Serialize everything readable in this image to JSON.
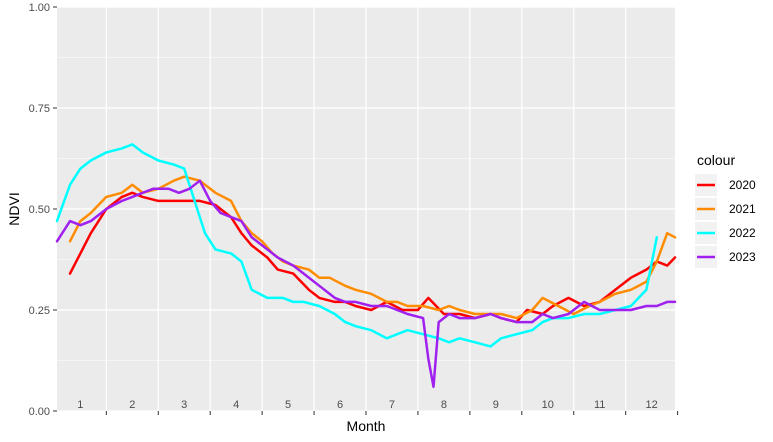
{
  "chart_data": {
    "type": "line",
    "xlabel": "Month",
    "ylabel": "NDVI",
    "xlim": [
      0.55,
      12.45
    ],
    "ylim": [
      0,
      1
    ],
    "y_ticks": [
      "0.00",
      "0.25",
      "0.50",
      "0.75",
      "1.00"
    ],
    "month_labels": [
      "1",
      "2",
      "3",
      "4",
      "5",
      "6",
      "7",
      "8",
      "9",
      "10",
      "11",
      "12"
    ],
    "grid": true,
    "legend_position": "right",
    "legend_title": "colour",
    "series": [
      {
        "name": "2020",
        "color": "#ff0000",
        "x": [
          0.8,
          1.0,
          1.2,
          1.5,
          1.8,
          2.0,
          2.2,
          2.5,
          2.7,
          3.0,
          3.3,
          3.6,
          3.9,
          4.1,
          4.3,
          4.6,
          4.8,
          5.1,
          5.4,
          5.6,
          5.9,
          6.1,
          6.3,
          6.6,
          6.9,
          7.2,
          7.5,
          7.7,
          8.0,
          8.3,
          8.6,
          8.9,
          9.1,
          9.4,
          9.6,
          9.9,
          10.1,
          10.4,
          10.7,
          11.0,
          11.3,
          11.6,
          11.9,
          12.1,
          12.3,
          12.45
        ],
        "y": [
          0.34,
          0.39,
          0.44,
          0.5,
          0.53,
          0.54,
          0.53,
          0.52,
          0.52,
          0.52,
          0.52,
          0.51,
          0.48,
          0.44,
          0.41,
          0.38,
          0.35,
          0.34,
          0.3,
          0.28,
          0.27,
          0.27,
          0.26,
          0.25,
          0.27,
          0.25,
          0.25,
          0.28,
          0.24,
          0.24,
          0.23,
          0.24,
          0.23,
          0.22,
          0.25,
          0.24,
          0.26,
          0.28,
          0.26,
          0.27,
          0.3,
          0.33,
          0.35,
          0.37,
          0.36,
          0.38
        ]
      },
      {
        "name": "2021",
        "color": "#ff8c00",
        "x": [
          0.8,
          1.0,
          1.2,
          1.5,
          1.8,
          2.0,
          2.2,
          2.5,
          2.8,
          3.0,
          3.3,
          3.6,
          3.9,
          4.1,
          4.3,
          4.5,
          4.7,
          4.9,
          5.1,
          5.4,
          5.6,
          5.8,
          6.1,
          6.3,
          6.6,
          6.9,
          7.1,
          7.3,
          7.6,
          7.9,
          8.1,
          8.3,
          8.6,
          8.9,
          9.1,
          9.4,
          9.7,
          9.9,
          10.2,
          10.5,
          10.8,
          11.0,
          11.3,
          11.6,
          11.9,
          12.1,
          12.3,
          12.45
        ],
        "y": [
          0.42,
          0.47,
          0.49,
          0.53,
          0.54,
          0.56,
          0.54,
          0.55,
          0.57,
          0.58,
          0.57,
          0.54,
          0.52,
          0.47,
          0.44,
          0.42,
          0.39,
          0.37,
          0.36,
          0.35,
          0.33,
          0.33,
          0.31,
          0.3,
          0.29,
          0.27,
          0.27,
          0.26,
          0.26,
          0.25,
          0.26,
          0.25,
          0.24,
          0.24,
          0.24,
          0.23,
          0.25,
          0.28,
          0.26,
          0.24,
          0.26,
          0.27,
          0.29,
          0.3,
          0.32,
          0.37,
          0.44,
          0.43
        ]
      },
      {
        "name": "2022",
        "color": "#00ffff",
        "x": [
          0.55,
          0.8,
          1.0,
          1.2,
          1.5,
          1.8,
          2.0,
          2.2,
          2.5,
          2.8,
          3.0,
          3.2,
          3.4,
          3.6,
          3.9,
          4.1,
          4.3,
          4.6,
          4.9,
          5.1,
          5.3,
          5.6,
          5.9,
          6.1,
          6.3,
          6.6,
          6.9,
          7.1,
          7.3,
          7.6,
          7.9,
          8.1,
          8.3,
          8.6,
          8.9,
          9.1,
          9.4,
          9.7,
          9.9,
          10.1,
          10.4,
          10.7,
          11.0,
          11.3,
          11.6,
          11.9,
          12.1
        ],
        "y": [
          0.47,
          0.56,
          0.6,
          0.62,
          0.64,
          0.65,
          0.66,
          0.64,
          0.62,
          0.61,
          0.6,
          0.52,
          0.44,
          0.4,
          0.39,
          0.37,
          0.3,
          0.28,
          0.28,
          0.27,
          0.27,
          0.26,
          0.24,
          0.22,
          0.21,
          0.2,
          0.18,
          0.19,
          0.2,
          0.19,
          0.18,
          0.17,
          0.18,
          0.17,
          0.16,
          0.18,
          0.19,
          0.2,
          0.22,
          0.23,
          0.23,
          0.24,
          0.24,
          0.25,
          0.26,
          0.3,
          0.43
        ]
      },
      {
        "name": "2023",
        "color": "#a020f0",
        "x": [
          0.55,
          0.8,
          1.0,
          1.2,
          1.5,
          1.8,
          2.0,
          2.2,
          2.4,
          2.7,
          2.9,
          3.1,
          3.3,
          3.5,
          3.7,
          3.9,
          4.1,
          4.3,
          4.6,
          4.8,
          5.1,
          5.3,
          5.6,
          5.9,
          6.1,
          6.3,
          6.6,
          6.9,
          7.1,
          7.3,
          7.6,
          7.7,
          7.8,
          7.9,
          8.1,
          8.3,
          8.6,
          8.9,
          9.1,
          9.4,
          9.7,
          9.9,
          10.1,
          10.4,
          10.7,
          11.0,
          11.3,
          11.6,
          11.9,
          12.1,
          12.3,
          12.45
        ],
        "y": [
          0.42,
          0.47,
          0.46,
          0.47,
          0.5,
          0.52,
          0.53,
          0.54,
          0.55,
          0.55,
          0.54,
          0.55,
          0.57,
          0.52,
          0.49,
          0.48,
          0.47,
          0.43,
          0.4,
          0.38,
          0.36,
          0.34,
          0.31,
          0.28,
          0.27,
          0.27,
          0.26,
          0.26,
          0.25,
          0.24,
          0.23,
          0.13,
          0.06,
          0.22,
          0.24,
          0.23,
          0.23,
          0.24,
          0.23,
          0.22,
          0.22,
          0.24,
          0.23,
          0.24,
          0.27,
          0.25,
          0.25,
          0.25,
          0.26,
          0.26,
          0.27,
          0.27
        ]
      }
    ]
  }
}
